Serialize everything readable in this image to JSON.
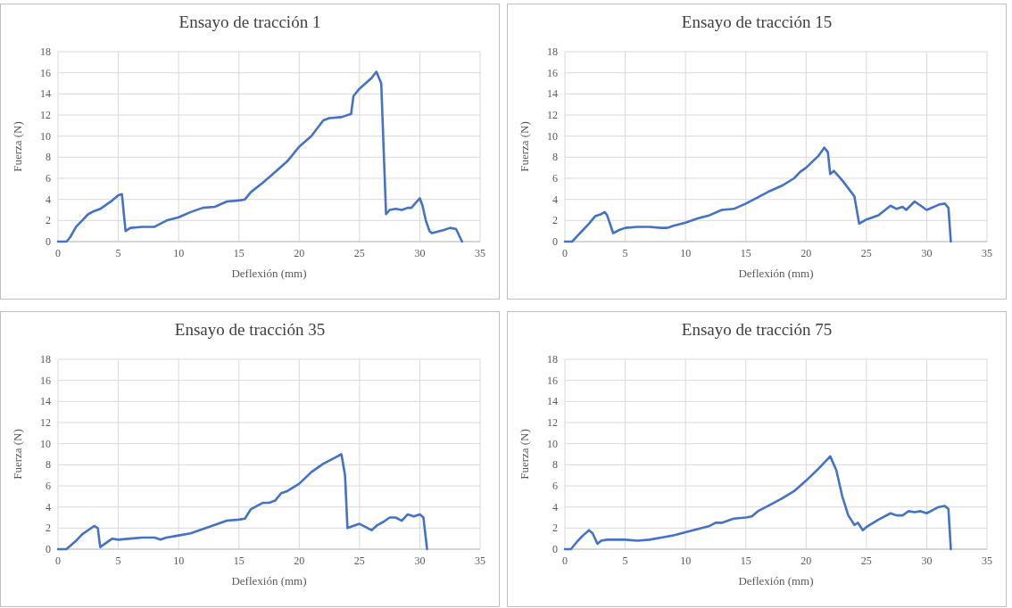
{
  "chart_data": [
    {
      "type": "line",
      "title": "Ensayo de tracción 1",
      "xlabel": "Deflexión (mm)",
      "ylabel": "Fuerza (N)",
      "xlim": [
        0,
        35
      ],
      "xticks": [
        0,
        5,
        10,
        15,
        20,
        25,
        30,
        35
      ],
      "ylim": [
        0,
        18
      ],
      "yticks": [
        0,
        2,
        4,
        6,
        8,
        10,
        12,
        14,
        16,
        18
      ],
      "grid": true,
      "series": [
        {
          "color": "#4472c4",
          "x": [
            0,
            0.7,
            1,
            1.5,
            2,
            2.5,
            3,
            3.5,
            4,
            4.5,
            5,
            5.3,
            5.6,
            6,
            7,
            8,
            8.5,
            9,
            10,
            11,
            12,
            13,
            14,
            15,
            15.5,
            16,
            17,
            18,
            19,
            20,
            21,
            22,
            22.5,
            23.5,
            24.3,
            24.5,
            25,
            26,
            26.4,
            26.8,
            27.2,
            27.5,
            28,
            28.5,
            29,
            29.3,
            29.6,
            30,
            30.2,
            30.5,
            30.8,
            31,
            32,
            32.5,
            33,
            33.5
          ],
          "values": [
            0,
            0,
            0.4,
            1.4,
            2,
            2.6,
            2.9,
            3.1,
            3.5,
            3.9,
            4.4,
            4.5,
            1,
            1.3,
            1.4,
            1.4,
            1.7,
            2,
            2.3,
            2.8,
            3.2,
            3.3,
            3.8,
            3.9,
            4,
            4.7,
            5.6,
            6.6,
            7.6,
            9,
            10,
            11.5,
            11.7,
            11.8,
            12.1,
            13.8,
            14.5,
            15.5,
            16.1,
            15,
            2.6,
            3,
            3.1,
            3,
            3.2,
            3.2,
            3.6,
            4.1,
            3.5,
            2,
            1,
            0.8,
            1.1,
            1.3,
            1.2,
            0
          ]
        }
      ]
    },
    {
      "type": "line",
      "title": "Ensayo de tracción 15",
      "xlabel": "Deflexión (mm)",
      "ylabel": "Fuerza (N)",
      "xlim": [
        0,
        35
      ],
      "xticks": [
        0,
        5,
        10,
        15,
        20,
        25,
        30,
        35
      ],
      "ylim": [
        0,
        18
      ],
      "yticks": [
        0,
        2,
        4,
        6,
        8,
        10,
        12,
        14,
        16,
        18
      ],
      "grid": true,
      "series": [
        {
          "color": "#4472c4",
          "x": [
            0,
            0.6,
            1,
            1.5,
            2,
            2.5,
            3,
            3.3,
            3.5,
            4,
            4.5,
            5,
            6,
            7,
            8,
            8.5,
            9,
            10,
            11,
            12,
            13,
            14,
            15,
            16,
            17,
            18,
            19,
            19.5,
            20,
            21,
            21.5,
            21.8,
            22,
            22.3,
            23,
            24,
            24.2,
            24.4,
            25,
            26,
            27,
            27.5,
            28,
            28.3,
            29,
            30,
            31,
            31.5,
            31.8,
            32
          ],
          "values": [
            0,
            0,
            0.5,
            1.1,
            1.7,
            2.4,
            2.6,
            2.8,
            2.5,
            0.8,
            1.1,
            1.3,
            1.4,
            1.4,
            1.3,
            1.3,
            1.5,
            1.8,
            2.2,
            2.5,
            3,
            3.1,
            3.6,
            4.2,
            4.8,
            5.3,
            6,
            6.6,
            7,
            8.1,
            8.9,
            8.5,
            6.4,
            6.7,
            5.8,
            4.3,
            3,
            1.7,
            2.1,
            2.5,
            3.4,
            3.1,
            3.3,
            3,
            3.8,
            3,
            3.5,
            3.6,
            3.2,
            0
          ]
        }
      ]
    },
    {
      "type": "line",
      "title": "Ensayo de tracción 35",
      "xlabel": "Deflexión (mm)",
      "ylabel": "Fuerza (N)",
      "xlim": [
        0,
        35
      ],
      "xticks": [
        0,
        5,
        10,
        15,
        20,
        25,
        30,
        35
      ],
      "ylim": [
        0,
        18
      ],
      "yticks": [
        0,
        2,
        4,
        6,
        8,
        10,
        12,
        14,
        16,
        18
      ],
      "grid": true,
      "series": [
        {
          "color": "#4472c4",
          "x": [
            0,
            0.7,
            1,
            1.5,
            2,
            2.5,
            3,
            3.3,
            3.5,
            4,
            4.5,
            5,
            6,
            7,
            8,
            8.5,
            9,
            10,
            11,
            12,
            13,
            14,
            15,
            15.5,
            16,
            17,
            17.5,
            18,
            18.5,
            19,
            20,
            21,
            22,
            23,
            23.5,
            23.8,
            24,
            25,
            25.5,
            26,
            26.5,
            27,
            27.5,
            28,
            28.5,
            29,
            29.5,
            30,
            30.3,
            30.6
          ],
          "values": [
            0,
            0,
            0.3,
            0.8,
            1.4,
            1.8,
            2.2,
            2,
            0.2,
            0.6,
            1,
            0.9,
            1,
            1.1,
            1.1,
            0.9,
            1.1,
            1.3,
            1.5,
            1.9,
            2.3,
            2.7,
            2.8,
            2.9,
            3.8,
            4.4,
            4.4,
            4.6,
            5.3,
            5.5,
            6.2,
            7.3,
            8.1,
            8.7,
            9,
            7,
            2,
            2.4,
            2.1,
            1.8,
            2.3,
            2.6,
            3,
            3,
            2.7,
            3.3,
            3.1,
            3.3,
            3,
            0
          ]
        }
      ]
    },
    {
      "type": "line",
      "title": "Ensayo de tracción 75",
      "xlabel": "Deflexión (mm)",
      "ylabel": "Fuerza (N)",
      "xlim": [
        0,
        35
      ],
      "xticks": [
        0,
        5,
        10,
        15,
        20,
        25,
        30,
        35
      ],
      "ylim": [
        0,
        18
      ],
      "yticks": [
        0,
        2,
        4,
        6,
        8,
        10,
        12,
        14,
        16,
        18
      ],
      "grid": true,
      "series": [
        {
          "color": "#4472c4",
          "x": [
            0,
            0.5,
            1,
            1.5,
            2,
            2.3,
            2.7,
            3,
            3.5,
            4,
            5,
            6,
            7,
            8,
            8.5,
            9,
            10,
            11,
            12,
            12.5,
            13,
            14,
            15,
            15.5,
            16,
            17,
            18,
            19,
            20,
            21,
            22,
            22.5,
            23,
            23.5,
            24,
            24.3,
            24.7,
            25,
            26,
            27,
            27.5,
            28,
            28.5,
            29,
            29.5,
            30,
            30.5,
            31,
            31.5,
            31.8,
            32
          ],
          "values": [
            0,
            0,
            0.7,
            1.3,
            1.8,
            1.5,
            0.5,
            0.8,
            0.9,
            0.9,
            0.9,
            0.8,
            0.9,
            1.1,
            1.2,
            1.3,
            1.6,
            1.9,
            2.2,
            2.5,
            2.5,
            2.9,
            3,
            3.1,
            3.6,
            4.2,
            4.8,
            5.5,
            6.5,
            7.6,
            8.8,
            7.5,
            5,
            3.2,
            2.3,
            2.5,
            1.8,
            2.1,
            2.8,
            3.4,
            3.2,
            3.2,
            3.6,
            3.5,
            3.6,
            3.4,
            3.7,
            4,
            4.1,
            3.8,
            0
          ]
        }
      ]
    }
  ]
}
